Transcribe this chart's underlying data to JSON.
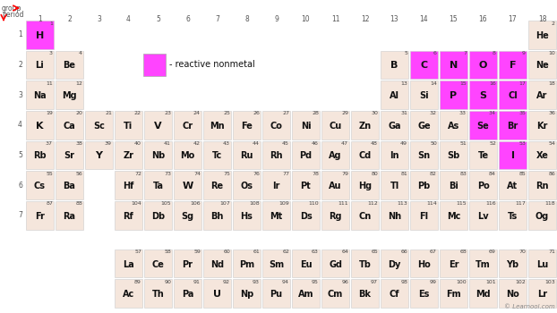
{
  "bg_color": "#ffffff",
  "cell_color_default": "#f5e6dc",
  "cell_color_reactive": "#ff44ff",
  "cell_border": "#cccccc",
  "text_color": "#111111",
  "num_color": "#444444",
  "watermark": "© Learnool.com",
  "elements": [
    {
      "symbol": "H",
      "number": 1,
      "row": 1,
      "col": 1,
      "reactive": true
    },
    {
      "symbol": "He",
      "number": 2,
      "row": 1,
      "col": 18,
      "reactive": false
    },
    {
      "symbol": "Li",
      "number": 3,
      "row": 2,
      "col": 1,
      "reactive": false
    },
    {
      "symbol": "Be",
      "number": 4,
      "row": 2,
      "col": 2,
      "reactive": false
    },
    {
      "symbol": "B",
      "number": 5,
      "row": 2,
      "col": 13,
      "reactive": false
    },
    {
      "symbol": "C",
      "number": 6,
      "row": 2,
      "col": 14,
      "reactive": true
    },
    {
      "symbol": "N",
      "number": 7,
      "row": 2,
      "col": 15,
      "reactive": true
    },
    {
      "symbol": "O",
      "number": 8,
      "row": 2,
      "col": 16,
      "reactive": true
    },
    {
      "symbol": "F",
      "number": 9,
      "row": 2,
      "col": 17,
      "reactive": true
    },
    {
      "symbol": "Ne",
      "number": 10,
      "row": 2,
      "col": 18,
      "reactive": false
    },
    {
      "symbol": "Na",
      "number": 11,
      "row": 3,
      "col": 1,
      "reactive": false
    },
    {
      "symbol": "Mg",
      "number": 12,
      "row": 3,
      "col": 2,
      "reactive": false
    },
    {
      "symbol": "Al",
      "number": 13,
      "row": 3,
      "col": 13,
      "reactive": false
    },
    {
      "symbol": "Si",
      "number": 14,
      "row": 3,
      "col": 14,
      "reactive": false
    },
    {
      "symbol": "P",
      "number": 15,
      "row": 3,
      "col": 15,
      "reactive": true
    },
    {
      "symbol": "S",
      "number": 16,
      "row": 3,
      "col": 16,
      "reactive": true
    },
    {
      "symbol": "Cl",
      "number": 17,
      "row": 3,
      "col": 17,
      "reactive": true
    },
    {
      "symbol": "Ar",
      "number": 18,
      "row": 3,
      "col": 18,
      "reactive": false
    },
    {
      "symbol": "K",
      "number": 19,
      "row": 4,
      "col": 1,
      "reactive": false
    },
    {
      "symbol": "Ca",
      "number": 20,
      "row": 4,
      "col": 2,
      "reactive": false
    },
    {
      "symbol": "Sc",
      "number": 21,
      "row": 4,
      "col": 3,
      "reactive": false
    },
    {
      "symbol": "Ti",
      "number": 22,
      "row": 4,
      "col": 4,
      "reactive": false
    },
    {
      "symbol": "V",
      "number": 23,
      "row": 4,
      "col": 5,
      "reactive": false
    },
    {
      "symbol": "Cr",
      "number": 24,
      "row": 4,
      "col": 6,
      "reactive": false
    },
    {
      "symbol": "Mn",
      "number": 25,
      "row": 4,
      "col": 7,
      "reactive": false
    },
    {
      "symbol": "Fe",
      "number": 26,
      "row": 4,
      "col": 8,
      "reactive": false
    },
    {
      "symbol": "Co",
      "number": 27,
      "row": 4,
      "col": 9,
      "reactive": false
    },
    {
      "symbol": "Ni",
      "number": 28,
      "row": 4,
      "col": 10,
      "reactive": false
    },
    {
      "symbol": "Cu",
      "number": 29,
      "row": 4,
      "col": 11,
      "reactive": false
    },
    {
      "symbol": "Zn",
      "number": 30,
      "row": 4,
      "col": 12,
      "reactive": false
    },
    {
      "symbol": "Ga",
      "number": 31,
      "row": 4,
      "col": 13,
      "reactive": false
    },
    {
      "symbol": "Ge",
      "number": 32,
      "row": 4,
      "col": 14,
      "reactive": false
    },
    {
      "symbol": "As",
      "number": 33,
      "row": 4,
      "col": 15,
      "reactive": false
    },
    {
      "symbol": "Se",
      "number": 34,
      "row": 4,
      "col": 16,
      "reactive": true
    },
    {
      "symbol": "Br",
      "number": 35,
      "row": 4,
      "col": 17,
      "reactive": true
    },
    {
      "symbol": "Kr",
      "number": 36,
      "row": 4,
      "col": 18,
      "reactive": false
    },
    {
      "symbol": "Rb",
      "number": 37,
      "row": 5,
      "col": 1,
      "reactive": false
    },
    {
      "symbol": "Sr",
      "number": 38,
      "row": 5,
      "col": 2,
      "reactive": false
    },
    {
      "symbol": "Y",
      "number": 39,
      "row": 5,
      "col": 3,
      "reactive": false
    },
    {
      "symbol": "Zr",
      "number": 40,
      "row": 5,
      "col": 4,
      "reactive": false
    },
    {
      "symbol": "Nb",
      "number": 41,
      "row": 5,
      "col": 5,
      "reactive": false
    },
    {
      "symbol": "Mo",
      "number": 42,
      "row": 5,
      "col": 6,
      "reactive": false
    },
    {
      "symbol": "Tc",
      "number": 43,
      "row": 5,
      "col": 7,
      "reactive": false
    },
    {
      "symbol": "Ru",
      "number": 44,
      "row": 5,
      "col": 8,
      "reactive": false
    },
    {
      "symbol": "Rh",
      "number": 45,
      "row": 5,
      "col": 9,
      "reactive": false
    },
    {
      "symbol": "Pd",
      "number": 46,
      "row": 5,
      "col": 10,
      "reactive": false
    },
    {
      "symbol": "Ag",
      "number": 47,
      "row": 5,
      "col": 11,
      "reactive": false
    },
    {
      "symbol": "Cd",
      "number": 48,
      "row": 5,
      "col": 12,
      "reactive": false
    },
    {
      "symbol": "In",
      "number": 49,
      "row": 5,
      "col": 13,
      "reactive": false
    },
    {
      "symbol": "Sn",
      "number": 50,
      "row": 5,
      "col": 14,
      "reactive": false
    },
    {
      "symbol": "Sb",
      "number": 51,
      "row": 5,
      "col": 15,
      "reactive": false
    },
    {
      "symbol": "Te",
      "number": 52,
      "row": 5,
      "col": 16,
      "reactive": false
    },
    {
      "symbol": "I",
      "number": 53,
      "row": 5,
      "col": 17,
      "reactive": true
    },
    {
      "symbol": "Xe",
      "number": 54,
      "row": 5,
      "col": 18,
      "reactive": false
    },
    {
      "symbol": "Cs",
      "number": 55,
      "row": 6,
      "col": 1,
      "reactive": false
    },
    {
      "symbol": "Ba",
      "number": 56,
      "row": 6,
      "col": 2,
      "reactive": false
    },
    {
      "symbol": "Hf",
      "number": 72,
      "row": 6,
      "col": 4,
      "reactive": false
    },
    {
      "symbol": "Ta",
      "number": 73,
      "row": 6,
      "col": 5,
      "reactive": false
    },
    {
      "symbol": "W",
      "number": 74,
      "row": 6,
      "col": 6,
      "reactive": false
    },
    {
      "symbol": "Re",
      "number": 75,
      "row": 6,
      "col": 7,
      "reactive": false
    },
    {
      "symbol": "Os",
      "number": 76,
      "row": 6,
      "col": 8,
      "reactive": false
    },
    {
      "symbol": "Ir",
      "number": 77,
      "row": 6,
      "col": 9,
      "reactive": false
    },
    {
      "symbol": "Pt",
      "number": 78,
      "row": 6,
      "col": 10,
      "reactive": false
    },
    {
      "symbol": "Au",
      "number": 79,
      "row": 6,
      "col": 11,
      "reactive": false
    },
    {
      "symbol": "Hg",
      "number": 80,
      "row": 6,
      "col": 12,
      "reactive": false
    },
    {
      "symbol": "Tl",
      "number": 81,
      "row": 6,
      "col": 13,
      "reactive": false
    },
    {
      "symbol": "Pb",
      "number": 82,
      "row": 6,
      "col": 14,
      "reactive": false
    },
    {
      "symbol": "Bi",
      "number": 83,
      "row": 6,
      "col": 15,
      "reactive": false
    },
    {
      "symbol": "Po",
      "number": 84,
      "row": 6,
      "col": 16,
      "reactive": false
    },
    {
      "symbol": "At",
      "number": 85,
      "row": 6,
      "col": 17,
      "reactive": false
    },
    {
      "symbol": "Rn",
      "number": 86,
      "row": 6,
      "col": 18,
      "reactive": false
    },
    {
      "symbol": "Fr",
      "number": 87,
      "row": 7,
      "col": 1,
      "reactive": false
    },
    {
      "symbol": "Ra",
      "number": 88,
      "row": 7,
      "col": 2,
      "reactive": false
    },
    {
      "symbol": "Rf",
      "number": 104,
      "row": 7,
      "col": 4,
      "reactive": false
    },
    {
      "symbol": "Db",
      "number": 105,
      "row": 7,
      "col": 5,
      "reactive": false
    },
    {
      "symbol": "Sg",
      "number": 106,
      "row": 7,
      "col": 6,
      "reactive": false
    },
    {
      "symbol": "Bh",
      "number": 107,
      "row": 7,
      "col": 7,
      "reactive": false
    },
    {
      "symbol": "Hs",
      "number": 108,
      "row": 7,
      "col": 8,
      "reactive": false
    },
    {
      "symbol": "Mt",
      "number": 109,
      "row": 7,
      "col": 9,
      "reactive": false
    },
    {
      "symbol": "Ds",
      "number": 110,
      "row": 7,
      "col": 10,
      "reactive": false
    },
    {
      "symbol": "Rg",
      "number": 111,
      "row": 7,
      "col": 11,
      "reactive": false
    },
    {
      "symbol": "Cn",
      "number": 112,
      "row": 7,
      "col": 12,
      "reactive": false
    },
    {
      "symbol": "Nh",
      "number": 113,
      "row": 7,
      "col": 13,
      "reactive": false
    },
    {
      "symbol": "Fl",
      "number": 114,
      "row": 7,
      "col": 14,
      "reactive": false
    },
    {
      "symbol": "Mc",
      "number": 115,
      "row": 7,
      "col": 15,
      "reactive": false
    },
    {
      "symbol": "Lv",
      "number": 116,
      "row": 7,
      "col": 16,
      "reactive": false
    },
    {
      "symbol": "Ts",
      "number": 117,
      "row": 7,
      "col": 17,
      "reactive": false
    },
    {
      "symbol": "Og",
      "number": 118,
      "row": 7,
      "col": 18,
      "reactive": false
    },
    {
      "symbol": "La",
      "number": 57,
      "row": 9,
      "col": 4,
      "reactive": false
    },
    {
      "symbol": "Ce",
      "number": 58,
      "row": 9,
      "col": 5,
      "reactive": false
    },
    {
      "symbol": "Pr",
      "number": 59,
      "row": 9,
      "col": 6,
      "reactive": false
    },
    {
      "symbol": "Nd",
      "number": 60,
      "row": 9,
      "col": 7,
      "reactive": false
    },
    {
      "symbol": "Pm",
      "number": 61,
      "row": 9,
      "col": 8,
      "reactive": false
    },
    {
      "symbol": "Sm",
      "number": 62,
      "row": 9,
      "col": 9,
      "reactive": false
    },
    {
      "symbol": "Eu",
      "number": 63,
      "row": 9,
      "col": 10,
      "reactive": false
    },
    {
      "symbol": "Gd",
      "number": 64,
      "row": 9,
      "col": 11,
      "reactive": false
    },
    {
      "symbol": "Tb",
      "number": 65,
      "row": 9,
      "col": 12,
      "reactive": false
    },
    {
      "symbol": "Dy",
      "number": 66,
      "row": 9,
      "col": 13,
      "reactive": false
    },
    {
      "symbol": "Ho",
      "number": 67,
      "row": 9,
      "col": 14,
      "reactive": false
    },
    {
      "symbol": "Er",
      "number": 68,
      "row": 9,
      "col": 15,
      "reactive": false
    },
    {
      "symbol": "Tm",
      "number": 69,
      "row": 9,
      "col": 16,
      "reactive": false
    },
    {
      "symbol": "Yb",
      "number": 70,
      "row": 9,
      "col": 17,
      "reactive": false
    },
    {
      "symbol": "Lu",
      "number": 71,
      "row": 9,
      "col": 18,
      "reactive": false
    },
    {
      "symbol": "Ac",
      "number": 89,
      "row": 10,
      "col": 4,
      "reactive": false
    },
    {
      "symbol": "Th",
      "number": 90,
      "row": 10,
      "col": 5,
      "reactive": false
    },
    {
      "symbol": "Pa",
      "number": 91,
      "row": 10,
      "col": 6,
      "reactive": false
    },
    {
      "symbol": "U",
      "number": 92,
      "row": 10,
      "col": 7,
      "reactive": false
    },
    {
      "symbol": "Np",
      "number": 93,
      "row": 10,
      "col": 8,
      "reactive": false
    },
    {
      "symbol": "Pu",
      "number": 94,
      "row": 10,
      "col": 9,
      "reactive": false
    },
    {
      "symbol": "Am",
      "number": 95,
      "row": 10,
      "col": 10,
      "reactive": false
    },
    {
      "symbol": "Cm",
      "number": 96,
      "row": 10,
      "col": 11,
      "reactive": false
    },
    {
      "symbol": "Bk",
      "number": 97,
      "row": 10,
      "col": 12,
      "reactive": false
    },
    {
      "symbol": "Cf",
      "number": 98,
      "row": 10,
      "col": 13,
      "reactive": false
    },
    {
      "symbol": "Es",
      "number": 99,
      "row": 10,
      "col": 14,
      "reactive": false
    },
    {
      "symbol": "Fm",
      "number": 100,
      "row": 10,
      "col": 15,
      "reactive": false
    },
    {
      "symbol": "Md",
      "number": 101,
      "row": 10,
      "col": 16,
      "reactive": false
    },
    {
      "symbol": "No",
      "number": 102,
      "row": 10,
      "col": 17,
      "reactive": false
    },
    {
      "symbol": "Lr",
      "number": 103,
      "row": 10,
      "col": 18,
      "reactive": false
    }
  ],
  "legend_text": "- reactive nonmetal",
  "legend_col": 5,
  "legend_row": 2,
  "group_label": "group",
  "period_label": "period"
}
